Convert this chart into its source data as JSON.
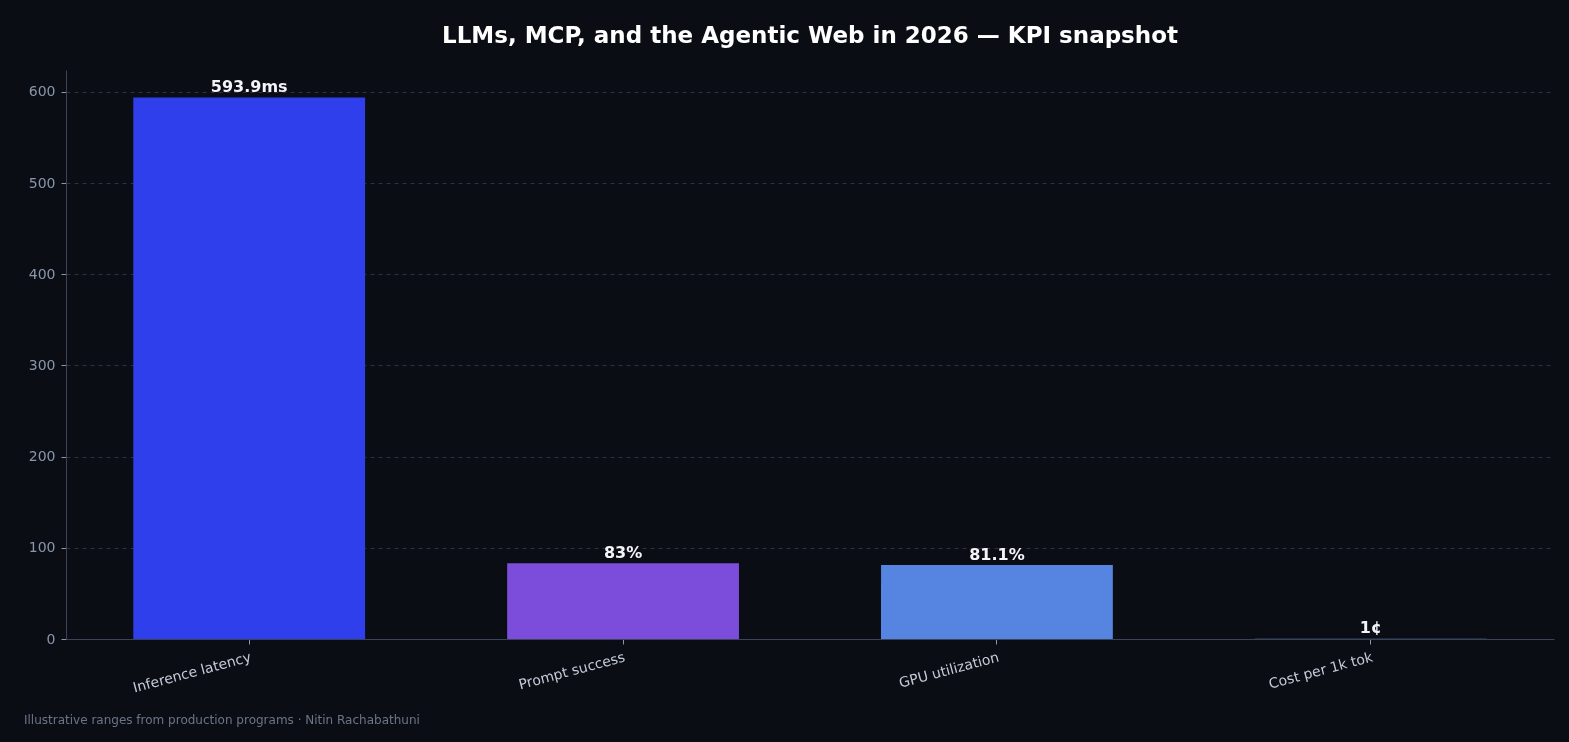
{
  "chart_data": {
    "type": "bar",
    "title": "LLMs, MCP, and the Agentic Web in 2026 — KPI snapshot",
    "categories": [
      "Inference latency",
      "Prompt success",
      "GPU utilization",
      "Cost per 1k tok"
    ],
    "values": [
      593.9,
      83,
      81.1,
      1
    ],
    "colors": [
      "#2f3fec",
      "#7c4ddb",
      "#5585e0",
      "#1f2a3c"
    ],
    "value_labels": [
      "593.9ms",
      "83%",
      "81.1%",
      "1¢"
    ],
    "ylim": [
      0,
      624
    ],
    "yticks": [
      0,
      100,
      200,
      300,
      400,
      500,
      600
    ],
    "grid": "y",
    "annotations": [
      "Illustrative ranges from production programs · Nitin Rachabathuni"
    ]
  }
}
